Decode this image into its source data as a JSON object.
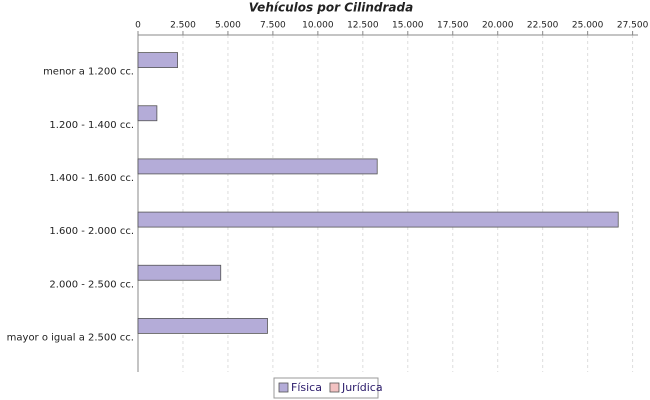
{
  "chart_data": {
    "type": "bar",
    "orientation": "horizontal",
    "title": "Vehículos por Cilindrada",
    "categories": [
      "menor a 1.200 cc.",
      "1.200 - 1.400 cc.",
      "1.400 - 1.600 cc.",
      "1.600 - 2.000 cc.",
      "2.000 - 2.500 cc.",
      "mayor o igual a 2.500 cc."
    ],
    "series": [
      {
        "name": "Física",
        "color": "#b4acd8",
        "values": [
          2200,
          1050,
          13300,
          26700,
          4600,
          7200
        ]
      },
      {
        "name": "Jurídica",
        "color": "#f2c2c2",
        "values": [
          0,
          0,
          0,
          0,
          0,
          0
        ]
      }
    ],
    "xlim": [
      0,
      27800
    ],
    "xticks": [
      0,
      {
        "value": 2500,
        "label": "2.500"
      },
      {
        "value": 5000,
        "label": "5.000"
      },
      {
        "value": 7500,
        "label": "7.500"
      },
      {
        "value": 10000,
        "label": "10.000"
      },
      {
        "value": 12500,
        "label": "12.500"
      },
      {
        "value": 15000,
        "label": "15.000"
      },
      {
        "value": 17500,
        "label": "17.500"
      },
      {
        "value": 20000,
        "label": "20.000"
      },
      {
        "value": 22500,
        "label": "22.500"
      },
      {
        "value": 25000,
        "label": "25.000"
      },
      {
        "value": 27500,
        "label": "27.500"
      }
    ],
    "grid": true,
    "legend": "bottom"
  }
}
